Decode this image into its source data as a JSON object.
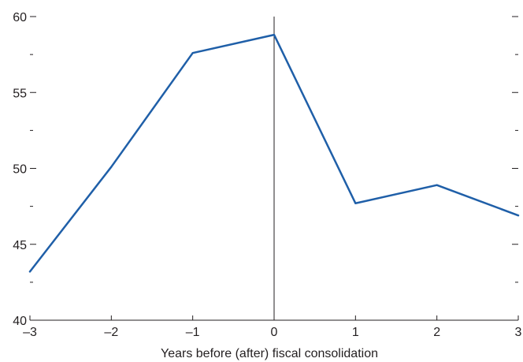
{
  "chart_data": {
    "type": "line",
    "xlabel": "Years before (after) fiscal consolidation",
    "ylabel": "",
    "x": [
      -3,
      -2,
      -1,
      0,
      1,
      2,
      3
    ],
    "x_tick_labels": [
      "–3",
      "–2",
      "–1",
      "0",
      "1",
      "2",
      "3"
    ],
    "xlim": [
      -3,
      3
    ],
    "ylim": [
      40,
      60
    ],
    "y_major_ticks": [
      40,
      45,
      50,
      55,
      60
    ],
    "y_minor_ticks": [
      42.5,
      47.5,
      52.5,
      57.5
    ],
    "reference_line_x": 0,
    "grid": false,
    "series": [
      {
        "values": [
          43.2,
          50.1,
          57.6,
          58.8,
          47.7,
          48.9,
          46.9
        ],
        "color": "#1f5fa8"
      }
    ]
  }
}
